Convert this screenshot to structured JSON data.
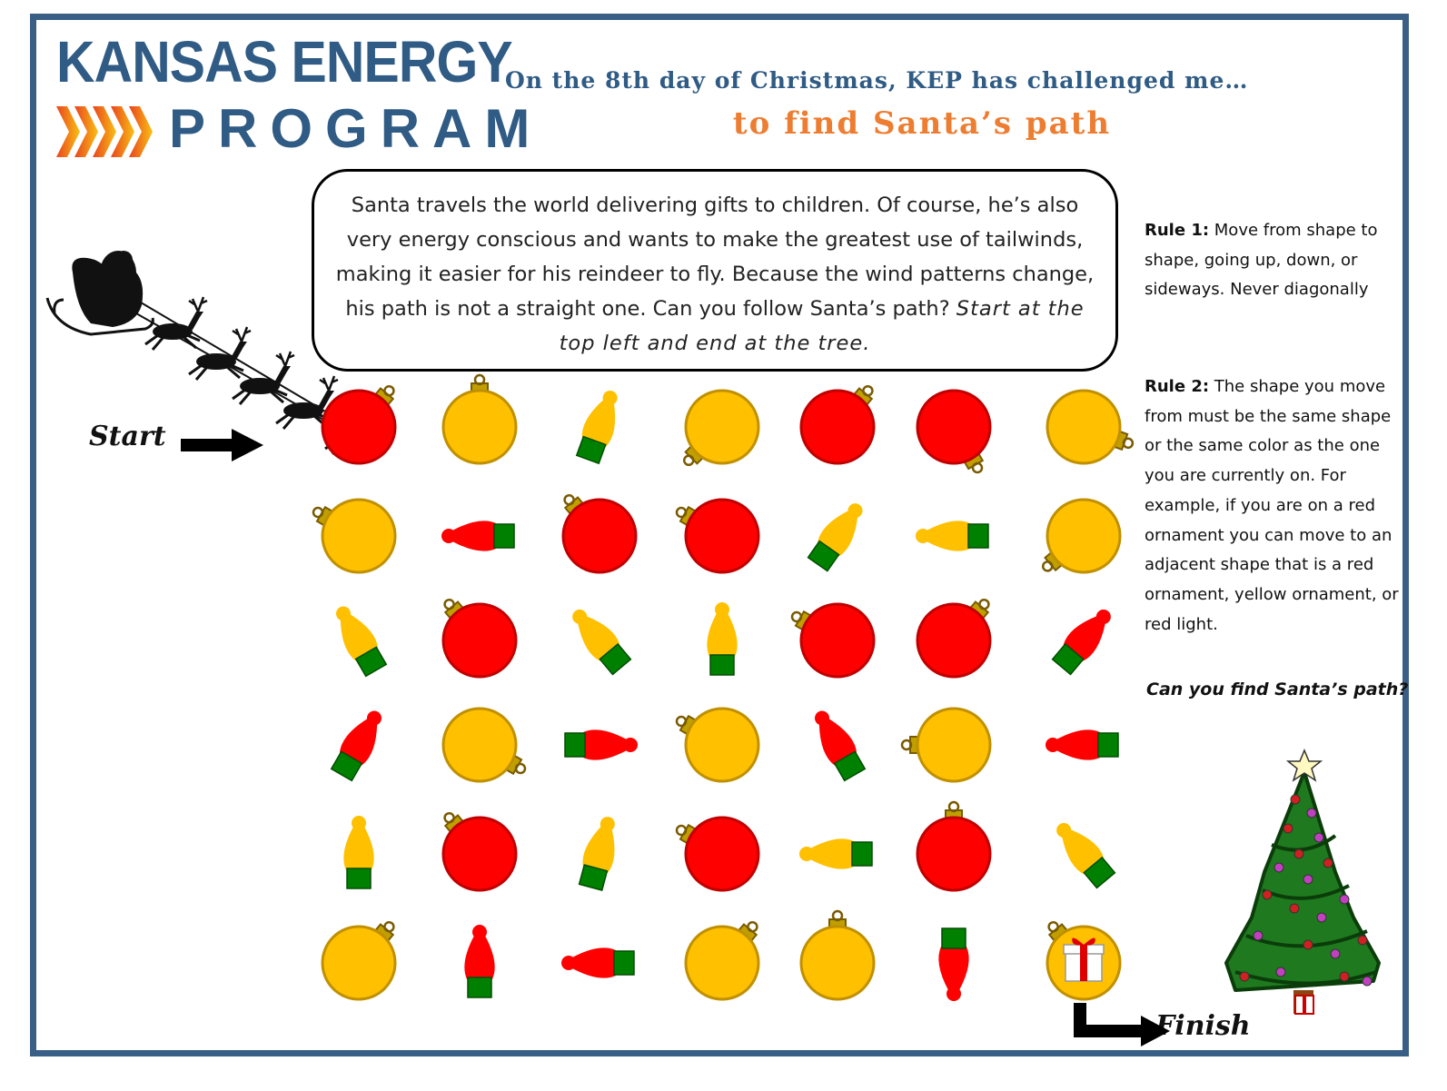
{
  "header": {
    "logo_line1": "KANSAS ENERGY",
    "logo_line2": "PROGRAM",
    "headline": "On the 8th day of Christmas, KEP has challenged me…",
    "subhead": "to find Santa’s path"
  },
  "intro": {
    "text": "Santa travels the world delivering gifts to children. Of course, he’s also very energy conscious and wants to make the greatest use of tailwinds, making it easier for his reindeer to fly. Because the wind patterns change, his path is not a straight one. Can you follow Santa’s path?",
    "emphasis": "Start at the top left and end at the tree."
  },
  "rules": {
    "rule1_label": "Rule 1:",
    "rule1_text": "Move from shape to shape, going up, down, or sideways. Never diagonally",
    "rule2_label": "Rule 2:",
    "rule2_text": "The shape you move from must be the same shape or the same color as the one you are currently on. For example, if you are on a red ornament you can move to an adjacent shape that is a red ornament, yellow ornament, or red light.",
    "question": "Can you find Santa’s path?"
  },
  "maze": {
    "start_label": "Start",
    "finish_label": "Finish",
    "colors": {
      "red": "#ff0000",
      "yellow": "#ffc000",
      "green": "#008000",
      "cap": "#c0a000"
    },
    "grid": [
      [
        "red-ornament",
        "yellow-ornament",
        "yellow-light",
        "yellow-ornament",
        "red-ornament",
        "red-ornament",
        "yellow-ornament"
      ],
      [
        "yellow-ornament",
        "red-light",
        "red-ornament",
        "red-ornament",
        "yellow-light",
        "yellow-light",
        "yellow-ornament"
      ],
      [
        "yellow-light",
        "red-ornament",
        "yellow-light",
        "yellow-light",
        "red-ornament",
        "red-ornament",
        "red-light"
      ],
      [
        "red-light",
        "yellow-ornament",
        "red-light",
        "yellow-ornament",
        "red-light",
        "yellow-ornament",
        "red-light"
      ],
      [
        "yellow-light",
        "red-ornament",
        "yellow-light",
        "red-ornament",
        "yellow-light",
        "red-ornament",
        "yellow-light"
      ],
      [
        "yellow-ornament",
        "red-light",
        "red-light",
        "yellow-ornament",
        "yellow-ornament",
        "red-light",
        "yellow-ornament"
      ]
    ],
    "end_cell_icon": "gift-icon"
  },
  "decor": {
    "sleigh_icon": "santa-sleigh-icon",
    "tree_icon": "christmas-tree-icon",
    "logo_icon": "chevron-arrows-icon"
  }
}
